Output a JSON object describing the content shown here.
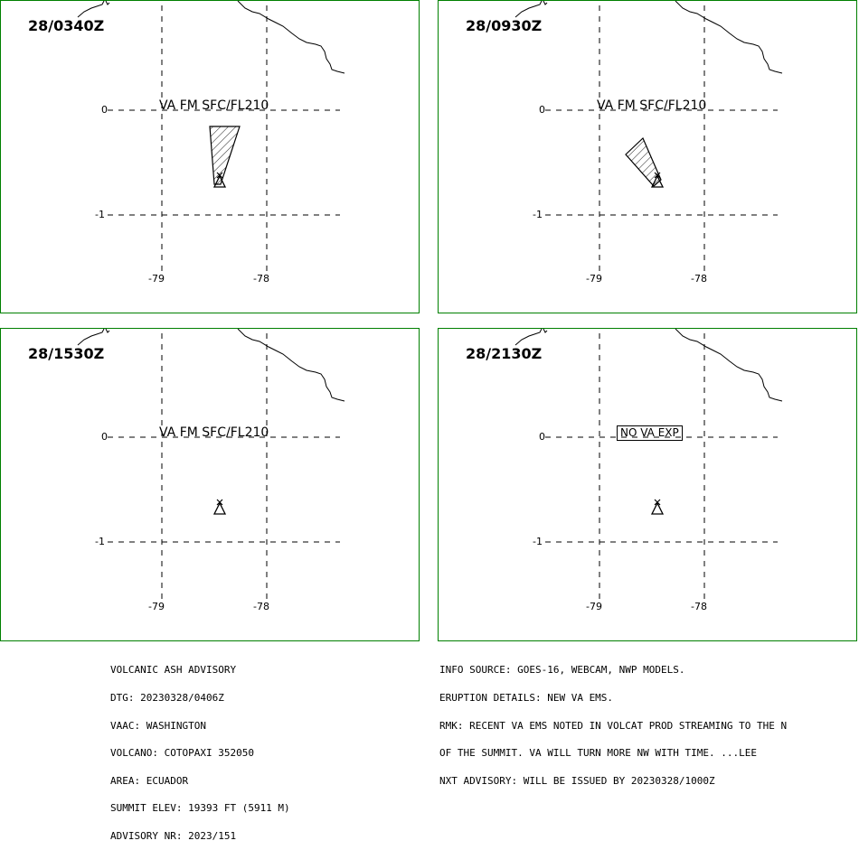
{
  "panels": [
    {
      "time": "28/0340Z",
      "label": "VA FM SFC/FL210",
      "no_va": false
    },
    {
      "time": "28/0930Z",
      "label": "VA FM SFC/FL210",
      "no_va": false
    },
    {
      "time": "28/1530Z",
      "label": "VA FM SFC/FL210",
      "no_va": false
    },
    {
      "time": "28/2130Z",
      "label": "NO VA EXP",
      "no_va": true
    }
  ],
  "axes": {
    "lat_top": "0",
    "lat_bottom": "-1",
    "lon_left": "-79",
    "lon_right": "-78"
  },
  "advisory_left": [
    "VOLCANIC ASH ADVISORY",
    "DTG: 20230328/0406Z",
    "VAAC: WASHINGTON",
    "VOLCANO: COTOPAXI 352050",
    "AREA: ECUADOR",
    "SUMMIT ELEV: 19393 FT (5911 M)",
    "ADVISORY NR: 2023/151"
  ],
  "advisory_right": [
    "INFO SOURCE: GOES-16, WEBCAM, NWP MODELS.",
    "ERUPTION DETAILS: NEW VA EMS.",
    "RMK: RECENT VA EMS NOTED IN VOLCAT PROD STREAMING TO THE N",
    "OF THE SUMMIT. VA WILL TURN MORE NW WITH TIME. ...LEE",
    "NXT ADVISORY: WILL BE ISSUED BY 20230328/1000Z"
  ],
  "colors": {
    "frame": "#008000",
    "ink": "#000000"
  }
}
